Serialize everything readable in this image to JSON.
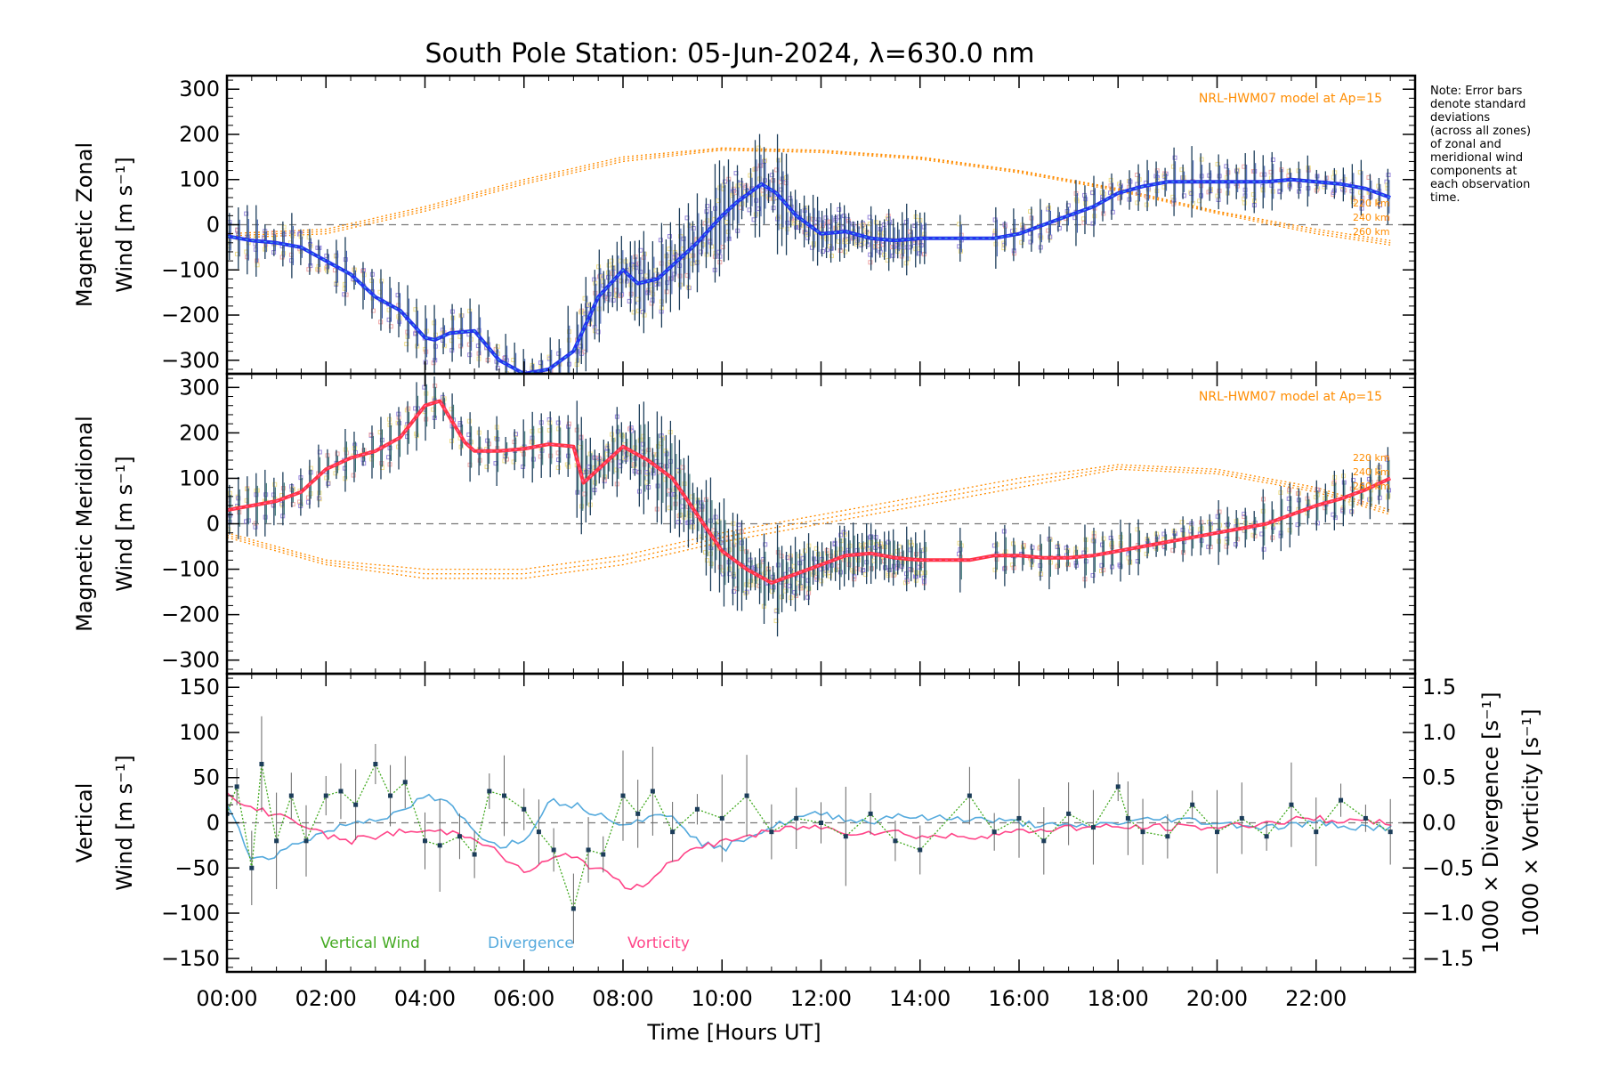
{
  "title": "South Pole Station: 05-Jun-2024, λ=630.0 nm",
  "note": [
    "Note: Error bars",
    "denote standard",
    "deviations",
    "(across all zones)",
    "of zonal and",
    "meridional wind",
    "components at",
    "each observation",
    "time."
  ],
  "colors": {
    "zonal": "#2233ee",
    "zonal_light": "#4aa8e0",
    "meridional": "#ff3344",
    "meridional_light": "#ff66aa",
    "model": "#ff8c00",
    "vertical": "#44aa22",
    "divergence": "#55aadd",
    "vorticity": "#ff4488",
    "errorbar": "#1c3d5a",
    "zone_purple": "#9988dd",
    "zone_yellow": "#f0e090",
    "zone_pink": "#f0a8a8"
  },
  "xticks": [
    "00:00",
    "02:00",
    "04:00",
    "06:00",
    "08:00",
    "10:00",
    "12:00",
    "14:00",
    "16:00",
    "18:00",
    "20:00",
    "22:00"
  ],
  "xlabel": "Time [Hours UT]",
  "chart_data": [
    {
      "type": "line",
      "panel": "zonal",
      "ylabel_line1": "Magnetic Zonal",
      "ylabel_line2": "Wind [m s⁻¹]",
      "ylim": [
        -330,
        330
      ],
      "yticks": [
        300,
        200,
        100,
        0,
        -100,
        -200,
        -300
      ],
      "model_label": "NRL-HWM07 model at Ap=15",
      "model_altitudes": [
        "220 km",
        "240 km",
        "260 km"
      ],
      "series": [
        {
          "name": "Magnetic Zonal Wind",
          "x": [
            0,
            0.5,
            1,
            1.5,
            2,
            2.5,
            3,
            3.5,
            4,
            4.2,
            4.5,
            5,
            5.5,
            6,
            6.5,
            7,
            7.5,
            8,
            8.3,
            8.7,
            9,
            9.5,
            10,
            10.3,
            10.8,
            11.1,
            11.5,
            12,
            12.5,
            13,
            13.5,
            14,
            14.5,
            15,
            15.5,
            16,
            16.5,
            17,
            17.5,
            18,
            18.5,
            19,
            19.5,
            20,
            20.5,
            21,
            21.5,
            22,
            22.5,
            23,
            23.5
          ],
          "y": [
            -25,
            -35,
            -40,
            -50,
            -80,
            -110,
            -160,
            -190,
            -250,
            -255,
            -240,
            -235,
            -300,
            -330,
            -320,
            -280,
            -160,
            -100,
            -130,
            -120,
            -90,
            -40,
            20,
            50,
            90,
            70,
            20,
            -20,
            -15,
            -30,
            -35,
            -30,
            -30,
            -30,
            -30,
            -20,
            0,
            20,
            40,
            70,
            85,
            95,
            95,
            95,
            95,
            95,
            100,
            95,
            90,
            80,
            60
          ]
        }
      ],
      "model_series": [
        {
          "name": "220 km",
          "x": [
            0,
            2,
            4,
            6,
            8,
            10,
            12,
            14,
            16,
            18,
            20,
            22,
            23.5
          ],
          "y": [
            -20,
            -10,
            40,
            100,
            150,
            170,
            165,
            150,
            120,
            80,
            30,
            -10,
            -35
          ]
        },
        {
          "name": "240 km",
          "x": [
            0,
            2,
            4,
            6,
            8,
            10,
            12,
            14,
            16,
            18,
            20,
            22,
            23.5
          ],
          "y": [
            -25,
            -15,
            35,
            95,
            145,
            168,
            163,
            148,
            118,
            78,
            28,
            -15,
            -40
          ]
        },
        {
          "name": "260 km",
          "x": [
            0,
            2,
            4,
            6,
            8,
            10,
            12,
            14,
            16,
            18,
            20,
            22,
            23.5
          ],
          "y": [
            -30,
            -20,
            30,
            90,
            140,
            165,
            160,
            145,
            115,
            75,
            25,
            -20,
            -45
          ]
        }
      ]
    },
    {
      "type": "line",
      "panel": "meridional",
      "ylabel_line1": "Magnetic Meridional",
      "ylabel_line2": "Wind [m s⁻¹]",
      "ylim": [
        -330,
        330
      ],
      "yticks": [
        300,
        200,
        100,
        0,
        -100,
        -200,
        -300
      ],
      "model_label": "NRL-HWM07 model at Ap=15",
      "model_altitudes": [
        "220 km",
        "240 km",
        "260 km"
      ],
      "series": [
        {
          "name": "Magnetic Meridional Wind",
          "x": [
            0,
            0.5,
            1,
            1.5,
            2,
            2.5,
            3,
            3.5,
            4,
            4.3,
            4.8,
            5,
            5.5,
            6,
            6.5,
            7,
            7.2,
            7.6,
            8,
            8.5,
            9,
            9.5,
            10,
            10.5,
            11,
            11.5,
            12,
            12.5,
            13,
            13.5,
            14,
            14.5,
            15,
            15.5,
            16,
            16.5,
            17,
            17.5,
            18,
            18.5,
            19,
            19.5,
            20,
            20.5,
            21,
            21.5,
            22,
            22.5,
            23,
            23.5
          ],
          "y": [
            30,
            40,
            50,
            70,
            120,
            145,
            160,
            190,
            260,
            270,
            180,
            160,
            160,
            165,
            175,
            170,
            90,
            130,
            170,
            140,
            100,
            20,
            -60,
            -100,
            -130,
            -110,
            -90,
            -70,
            -65,
            -75,
            -80,
            -80,
            -80,
            -70,
            -70,
            -75,
            -75,
            -70,
            -60,
            -50,
            -40,
            -30,
            -20,
            -10,
            0,
            20,
            40,
            55,
            75,
            100
          ]
        }
      ],
      "model_series": [
        {
          "name": "220 km",
          "x": [
            0,
            2,
            4,
            6,
            8,
            10,
            12,
            14,
            16,
            18,
            20,
            22,
            23.5
          ],
          "y": [
            -20,
            -80,
            -100,
            -100,
            -70,
            -20,
            20,
            60,
            100,
            130,
            120,
            80,
            30
          ]
        },
        {
          "name": "240 km",
          "x": [
            0,
            2,
            4,
            6,
            8,
            10,
            12,
            14,
            16,
            18,
            20,
            22,
            23.5
          ],
          "y": [
            -25,
            -85,
            -110,
            -110,
            -80,
            -30,
            10,
            50,
            90,
            125,
            115,
            75,
            25
          ]
        },
        {
          "name": "260 km",
          "x": [
            0,
            2,
            4,
            6,
            8,
            10,
            12,
            14,
            16,
            18,
            20,
            22,
            23.5
          ],
          "y": [
            -30,
            -90,
            -120,
            -120,
            -90,
            -40,
            0,
            40,
            80,
            120,
            110,
            70,
            20
          ]
        }
      ]
    },
    {
      "type": "line",
      "panel": "vertical",
      "ylabel_line1": "Vertical",
      "ylabel_line2": "Wind [m s⁻¹]",
      "right_label_div": "1000 × Divergence [s⁻¹]",
      "right_label_vor": "1000 × Vorticity [s⁻¹]",
      "ylim": [
        -165,
        165
      ],
      "yticks": [
        150,
        100,
        50,
        0,
        -50,
        -100,
        -150
      ],
      "y2lim": [
        -1.65,
        1.65
      ],
      "y2ticks": [
        "1.5",
        "1.0",
        "0.5",
        "0.0",
        "−0.5",
        "−1.0",
        "−1.5"
      ],
      "legend": [
        "Vertical Wind",
        "Divergence",
        "Vorticity"
      ],
      "series": [
        {
          "name": "Vertical Wind",
          "x": [
            0,
            0.2,
            0.5,
            0.7,
            1,
            1.3,
            1.6,
            2,
            2.3,
            2.6,
            3,
            3.3,
            3.6,
            4,
            4.3,
            4.7,
            5,
            5.3,
            5.6,
            6,
            6.3,
            6.6,
            7,
            7.3,
            7.6,
            8,
            8.3,
            8.6,
            9,
            9.5,
            10,
            10.5,
            11,
            11.5,
            12,
            12.5,
            13,
            13.5,
            14,
            15,
            15.5,
            16,
            16.5,
            17,
            17.5,
            18,
            18.2,
            18.5,
            19,
            19.5,
            20,
            20.5,
            21,
            21.5,
            22,
            22.5,
            23,
            23.5
          ],
          "y": [
            10,
            40,
            -50,
            65,
            -20,
            30,
            -20,
            30,
            35,
            20,
            65,
            30,
            45,
            -20,
            -25,
            -15,
            -35,
            35,
            30,
            15,
            -10,
            -30,
            -95,
            -30,
            -35,
            30,
            10,
            35,
            -10,
            15,
            5,
            30,
            -10,
            5,
            0,
            -15,
            10,
            -20,
            -30,
            30,
            -10,
            5,
            -20,
            10,
            -5,
            40,
            5,
            -10,
            -15,
            20,
            -10,
            5,
            -15,
            20,
            -10,
            25,
            5,
            -10
          ]
        },
        {
          "name": "Divergence",
          "x": [
            0,
            0.5,
            1,
            1.5,
            2,
            2.5,
            3,
            3.5,
            4,
            4.5,
            5,
            5.5,
            6,
            6.5,
            7,
            7.5,
            8,
            8.5,
            9,
            9.5,
            10,
            10.5,
            11,
            11.5,
            12,
            12.5,
            13,
            13.5,
            14,
            15,
            16,
            17,
            18,
            19,
            20,
            21,
            22,
            23,
            23.5
          ],
          "y": [
            0.2,
            -0.4,
            -0.35,
            -0.2,
            -0.1,
            0.0,
            0.05,
            0.1,
            0.3,
            0.2,
            -0.1,
            -0.25,
            -0.2,
            0.25,
            0.2,
            0.1,
            0.0,
            0.05,
            0.1,
            -0.2,
            -0.3,
            -0.15,
            -0.05,
            0.05,
            0.1,
            0.05,
            0.0,
            0.1,
            0.05,
            0.05,
            0.0,
            -0.05,
            0.0,
            0.05,
            0.0,
            -0.05,
            0.0,
            -0.05,
            -0.05
          ]
        },
        {
          "name": "Vorticity",
          "x": [
            0,
            0.5,
            1,
            1.5,
            2,
            2.5,
            3,
            3.5,
            4,
            4.5,
            5,
            5.5,
            6,
            6.2,
            6.6,
            7,
            7.4,
            7.8,
            8.2,
            8.6,
            9,
            9.5,
            10,
            10.5,
            11,
            11.5,
            12,
            12.5,
            13,
            13.5,
            14,
            15,
            16,
            17,
            18,
            19,
            20,
            21,
            22,
            23,
            23.5
          ],
          "y": [
            0.3,
            0.15,
            0.1,
            0.0,
            -0.15,
            -0.2,
            -0.15,
            -0.1,
            -0.1,
            -0.1,
            -0.15,
            -0.35,
            -0.55,
            -0.5,
            -0.4,
            -0.35,
            -0.5,
            -0.6,
            -0.75,
            -0.6,
            -0.4,
            -0.3,
            -0.2,
            -0.15,
            -0.1,
            -0.05,
            -0.05,
            -0.1,
            -0.1,
            -0.1,
            -0.15,
            -0.15,
            -0.1,
            -0.05,
            -0.05,
            -0.05,
            -0.05,
            0.0,
            0.05,
            0.0,
            0.0
          ]
        }
      ]
    }
  ]
}
